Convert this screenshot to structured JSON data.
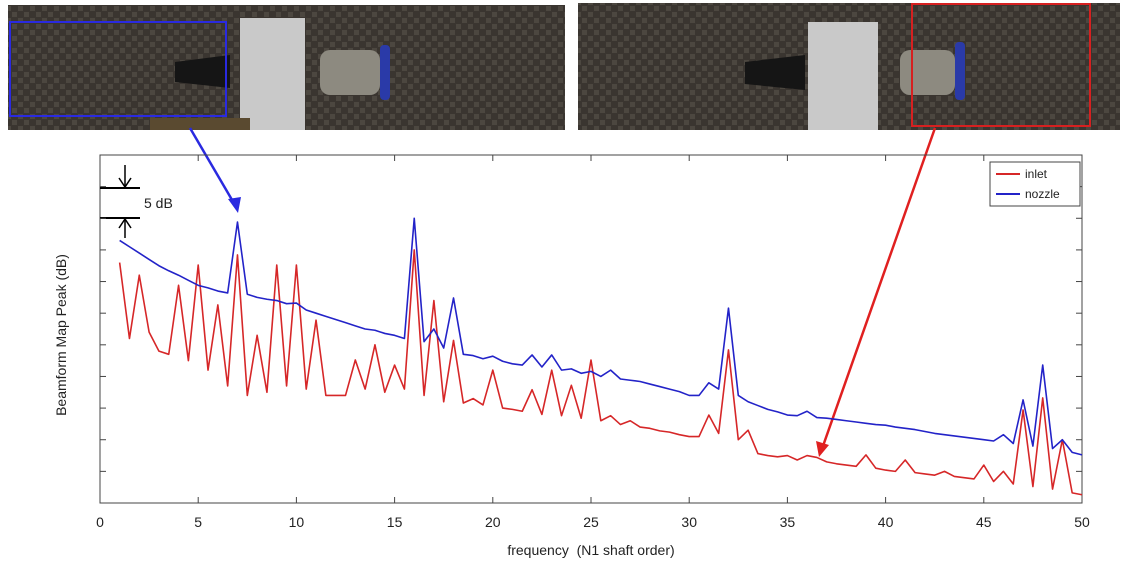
{
  "chart_data": {
    "type": "line",
    "y_label": "Beamform Map Peak (dB)",
    "x_label": "frequency  (N1 shaft order)",
    "annotation": "5 dB",
    "legend": "upper right",
    "xlim": [
      0,
      50
    ],
    "xticks": [
      0,
      5,
      10,
      15,
      20,
      25,
      30,
      35,
      40,
      45,
      50
    ],
    "ylim": [
      0,
      55
    ],
    "yticks": [
      0,
      5,
      10,
      15,
      20,
      25,
      30,
      35,
      40,
      45,
      50,
      55
    ],
    "x": [
      1,
      1.5,
      2,
      2.5,
      3,
      3.5,
      4,
      4.5,
      5,
      5.5,
      6,
      6.5,
      7,
      7.5,
      8,
      8.5,
      9,
      9.5,
      10,
      10.5,
      11,
      11.5,
      12,
      12.5,
      13,
      13.5,
      14,
      14.5,
      15,
      15.5,
      16,
      16.5,
      17,
      17.5,
      18,
      18.5,
      19,
      19.5,
      20,
      20.5,
      21,
      21.5,
      22,
      22.5,
      23,
      23.5,
      24,
      24.5,
      25,
      25.5,
      26,
      26.5,
      27,
      27.5,
      28,
      28.5,
      29,
      29.5,
      30,
      30.5,
      31,
      31.5,
      32,
      32.5,
      33,
      33.5,
      34,
      34.5,
      35,
      35.5,
      36,
      36.5,
      37,
      37.5,
      38,
      38.5,
      39,
      39.5,
      40,
      40.5,
      41,
      41.5,
      42,
      42.5,
      43,
      43.5,
      44,
      44.5,
      45,
      45.5,
      46,
      46.5,
      47,
      47.5,
      48,
      48.5,
      49,
      49.5,
      50
    ],
    "series": [
      {
        "name": "inlet",
        "color": "#d62728",
        "values": [
          38,
          26,
          36,
          27,
          24,
          23.5,
          34.4,
          22.5,
          37.6,
          21,
          31.3,
          18.5,
          39.2,
          17,
          26.5,
          17.5,
          37.6,
          18.5,
          37.6,
          18,
          28.9,
          17,
          17,
          17,
          22.6,
          18,
          25,
          17.5,
          21.8,
          18,
          40,
          17,
          32,
          16,
          25.7,
          15.8,
          16.5,
          15.5,
          21,
          15,
          14.8,
          14.5,
          17.9,
          14,
          21,
          13.8,
          18.6,
          13.4,
          22.6,
          13,
          13.8,
          12.4,
          13,
          12,
          11.8,
          11.4,
          11.2,
          10.8,
          10.5,
          10.5,
          13.9,
          11,
          24.2,
          10,
          11.5,
          7.8,
          7.5,
          7.3,
          7.5,
          6.8,
          7.5,
          7.2,
          6.5,
          6.2,
          6,
          5.8,
          7.6,
          5.5,
          5.2,
          5,
          6.8,
          4.8,
          4.6,
          4.4,
          5,
          4.2,
          4,
          3.8,
          6,
          3.4,
          5,
          3,
          14.7,
          2.6,
          16.6,
          2.2,
          10,
          1.6,
          1.3
        ]
      },
      {
        "name": "nozzle",
        "color": "#2323c8",
        "values": [
          41.5,
          40.5,
          39.5,
          38.5,
          37.5,
          36.7,
          36,
          35.2,
          34.4,
          34,
          33.5,
          33.2,
          44.4,
          33,
          32.5,
          32.2,
          32,
          31.5,
          31.6,
          30.5,
          30,
          29.5,
          29,
          28.5,
          28,
          27.5,
          27.3,
          26.8,
          26.5,
          26,
          45,
          25.5,
          27.5,
          24.5,
          32.4,
          23.5,
          23.3,
          22.8,
          23.2,
          22.4,
          22,
          21.8,
          23.4,
          21.5,
          23.4,
          21,
          21.2,
          20.5,
          20.8,
          20,
          21,
          19.6,
          19.4,
          19.2,
          18.8,
          18.4,
          18,
          17.6,
          17,
          17,
          19,
          18,
          30.8,
          17,
          16,
          15.4,
          14.8,
          14.4,
          13.9,
          13.8,
          14.5,
          13.5,
          13.4,
          13.2,
          13,
          12.8,
          12.6,
          12.4,
          12.3,
          12,
          11.8,
          11.6,
          11.3,
          11,
          10.8,
          10.6,
          10.4,
          10.2,
          10,
          9.8,
          10.8,
          9.4,
          16.3,
          9,
          21.8,
          8.6,
          10,
          8,
          7.6
        ]
      }
    ]
  }
}
